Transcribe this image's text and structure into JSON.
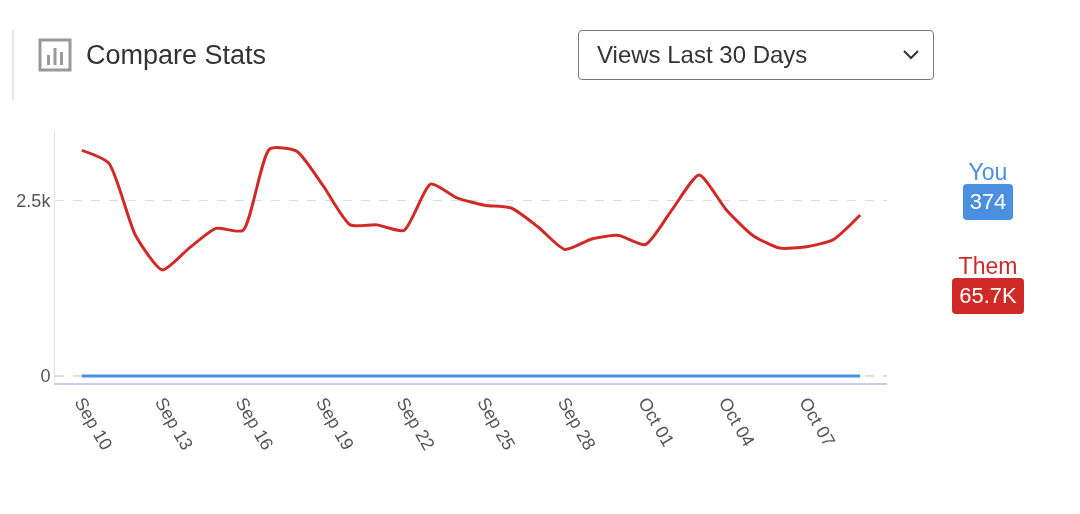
{
  "chart_data": {
    "type": "line",
    "title": "Compare Stats",
    "subtitle": "Views Last 30 Days",
    "x": [
      "--09-10",
      "--09-11",
      "--09-12",
      "--09-13",
      "--09-14",
      "--09-15",
      "--09-16",
      "--09-17",
      "--09-18",
      "--09-19",
      "--09-20",
      "--09-21",
      "--09-22",
      "--09-23",
      "--09-24",
      "--09-25",
      "--09-26",
      "--09-27",
      "--09-28",
      "--09-29",
      "--09-30",
      "--10-01",
      "--10-02",
      "--10-03",
      "--10-04",
      "--10-05",
      "--10-06",
      "--10-07",
      "--10-08",
      "--10-09"
    ],
    "series": [
      {
        "name": "You",
        "color": "#4a8fe0",
        "values": [
          0,
          0,
          0,
          0,
          0,
          0,
          0,
          0,
          0,
          0,
          0,
          0,
          0,
          0,
          0,
          0,
          0,
          0,
          0,
          0,
          0,
          0,
          0,
          0,
          0,
          0,
          0,
          0,
          0,
          0
        ]
      },
      {
        "name": "Them",
        "color": "#d02a27",
        "values": [
          3210,
          3030,
          2000,
          1510,
          1820,
          2100,
          2070,
          3230,
          3200,
          2700,
          2150,
          2150,
          2070,
          2730,
          2530,
          2430,
          2390,
          2120,
          1800,
          1950,
          2000,
          1870,
          2370,
          2860,
          2370,
          2000,
          1820,
          1840,
          1940,
          2290
        ]
      }
    ],
    "xlim": [
      "--09-09",
      "--10-10"
    ],
    "xticks": [
      {
        "value": "--09-10",
        "label": "Sep 10"
      },
      {
        "value": "--09-13",
        "label": "Sep 13"
      },
      {
        "value": "--09-16",
        "label": "Sep 16"
      },
      {
        "value": "--09-19",
        "label": "Sep 19"
      },
      {
        "value": "--09-22",
        "label": "Sep 22"
      },
      {
        "value": "--09-25",
        "label": "Sep 25"
      },
      {
        "value": "--09-28",
        "label": "Sep 28"
      },
      {
        "value": "--10-01",
        "label": "Oct 01"
      },
      {
        "value": "--10-04",
        "label": "Oct 04"
      },
      {
        "value": "--10-07",
        "label": "Oct 07"
      }
    ],
    "ylim": [
      -100,
      3500
    ],
    "yticks": [
      0,
      {
        "value": 2500,
        "label": "2.5k"
      }
    ],
    "grid": "y",
    "line_style": "solid",
    "marker": "none",
    "legend": "right",
    "annotations": [
      "374",
      "65.7K"
    ]
  }
}
